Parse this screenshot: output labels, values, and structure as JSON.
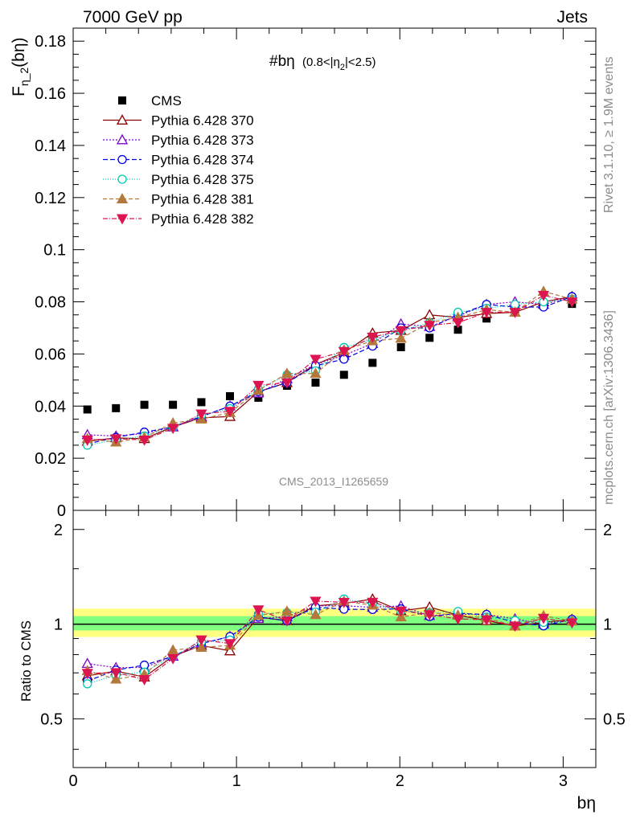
{
  "header": {
    "left": "7000 GeV pp",
    "right": "Jets"
  },
  "side": {
    "rivet": "Rivet 3.1.10, ≥ 1.9M events",
    "mcplots": "mcplots.cern.ch [arXiv:1306.3436]"
  },
  "watermark": "CMS_2013_I1265659",
  "chart_data": {
    "type": "scatter",
    "title_main": "#bη",
    "title_sub": "(0.8<|η",
    "title_sub_index": "2",
    "title_sub_end": "|<2.5)",
    "ylabel_main": "F",
    "ylabel_sub": "η_2",
    "ylabel_end": "(bη)",
    "ratio_ylabel": "Ratio to CMS",
    "xlabel": "bη",
    "xlim": [
      0,
      3.2
    ],
    "ylim": [
      0,
      0.185
    ],
    "ratio_ylim": [
      0.35,
      2.3
    ],
    "x_ticks": [
      "0",
      "1",
      "2",
      "3"
    ],
    "y_ticks": [
      "0",
      "0.02",
      "0.04",
      "0.06",
      "0.08",
      "0.1",
      "0.12",
      "0.14",
      "0.16",
      "0.18"
    ],
    "ratio_ticks": [
      "0.5",
      "1",
      "2"
    ],
    "x": [
      0.087,
      0.262,
      0.436,
      0.611,
      0.785,
      0.96,
      1.134,
      1.309,
      1.484,
      1.658,
      1.833,
      2.007,
      2.182,
      2.356,
      2.531,
      2.705,
      2.88,
      3.054
    ],
    "series": [
      {
        "name": "CMS",
        "color": "#000000",
        "marker": "square-filled",
        "values": [
          0.0387,
          0.0392,
          0.0405,
          0.0405,
          0.0415,
          0.0438,
          0.0432,
          0.0478,
          0.049,
          0.052,
          0.0566,
          0.0626,
          0.0662,
          0.0693,
          0.0736,
          0.077,
          0.079,
          0.0792
        ]
      },
      {
        "name": "Pythia 6.428 370",
        "color": "#8b0000",
        "marker": "triangle-up-open",
        "dash": "",
        "values": [
          0.0265,
          0.0278,
          0.0275,
          0.032,
          0.0355,
          0.036,
          0.0455,
          0.049,
          0.056,
          0.0605,
          0.068,
          0.069,
          0.075,
          0.074,
          0.0755,
          0.076,
          0.08,
          0.082
        ]
      },
      {
        "name": "Pythia 6.428 373",
        "color": "#8000c8",
        "marker": "triangle-up-open",
        "dash": "2,2",
        "values": [
          0.029,
          0.0285,
          0.0295,
          0.032,
          0.036,
          0.04,
          0.045,
          0.0505,
          0.056,
          0.0595,
          0.064,
          0.0715,
          0.0705,
          0.0745,
          0.079,
          0.08,
          0.079,
          0.082
        ]
      },
      {
        "name": "Pythia 6.428 374",
        "color": "#0000e0",
        "marker": "circle-open",
        "dash": "6,3",
        "values": [
          0.0255,
          0.028,
          0.03,
          0.032,
          0.036,
          0.04,
          0.0455,
          0.049,
          0.0555,
          0.058,
          0.063,
          0.07,
          0.07,
          0.075,
          0.079,
          0.078,
          0.078,
          0.082
        ]
      },
      {
        "name": "Pythia 6.428 375",
        "color": "#00c8b4",
        "marker": "circle-open",
        "dash": "1,2",
        "values": [
          0.025,
          0.027,
          0.0285,
          0.032,
          0.0365,
          0.039,
          0.0465,
          0.052,
          0.0535,
          0.0625,
          0.0655,
          0.069,
          0.072,
          0.076,
          0.0775,
          0.079,
          0.08,
          0.081
        ]
      },
      {
        "name": "Pythia 6.428 381",
        "color": "#b4783c",
        "marker": "triangle-up-filled",
        "dash": "5,3",
        "values": [
          0.0275,
          0.0262,
          0.028,
          0.0335,
          0.035,
          0.0375,
          0.046,
          0.0525,
          0.0525,
          0.0615,
          0.065,
          0.066,
          0.072,
          0.074,
          0.077,
          0.076,
          0.084,
          0.081
        ]
      },
      {
        "name": "Pythia 6.428 382",
        "color": "#dc1450",
        "marker": "triangle-down-filled",
        "dash": "6,2,1,2",
        "values": [
          0.027,
          0.0275,
          0.027,
          0.0315,
          0.037,
          0.038,
          0.048,
          0.049,
          0.058,
          0.061,
          0.0665,
          0.069,
          0.071,
          0.072,
          0.076,
          0.076,
          0.0825,
          0.08
        ]
      }
    ],
    "band_color_outer": "#ffff80",
    "band_color_inner": "#80ff80"
  }
}
